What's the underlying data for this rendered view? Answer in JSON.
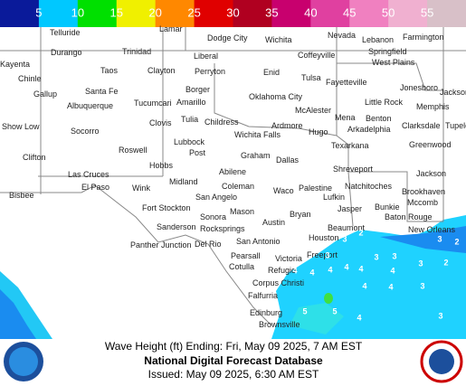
{
  "legend": {
    "labels": [
      5,
      10,
      15,
      20,
      25,
      30,
      35,
      40,
      45,
      50,
      55
    ]
  },
  "cities": [
    "Telluride",
    "Lamar",
    "Dodge City",
    "Wichita",
    "Nevada",
    "Lebanon",
    "Farmington",
    "Trinidad",
    "Durango",
    "Liberal",
    "Coffeyville",
    "Springfield",
    "West Plains",
    "Kayenta",
    "Taos",
    "Clayton",
    "Perryton",
    "Enid",
    "Tulsa",
    "Fayetteville",
    "Jonesboro",
    "Chinle",
    "Gallup",
    "Santa Fe",
    "Borger",
    "Amarillo",
    "Oklahoma City",
    "Little Rock",
    "Jackson",
    "Albuquerque",
    "Tucumcari",
    "McAlester",
    "Memphis",
    "Clovis",
    "Tulia",
    "Childress",
    "Ardmore",
    "Mena",
    "Benton",
    "Show Low",
    "Socorro",
    "Arkadelphia",
    "Clarksdale",
    "Tupelo",
    "Hugo",
    "Wichita Falls",
    "Lubbock",
    "Texarkana",
    "Greenwood",
    "Roswell",
    "Post",
    "Graham",
    "Dallas",
    "Clifton",
    "Hobbs",
    "Abilene",
    "Shreveport",
    "Jackson",
    "Las Cruces",
    "Midland",
    "Coleman",
    "Palestine",
    "Natchitoches",
    "Lufkin",
    "Waco",
    "Bisbee",
    "El Paso",
    "Wink",
    "San Angelo",
    "Brookhaven",
    "Mccomb",
    "Jasper",
    "Bunkie",
    "Fort Stockton",
    "Sonora",
    "Mason",
    "Bryan",
    "Baton Rouge",
    "Austin",
    "Sanderson",
    "Rocksprings",
    "Beaumont",
    "New Orleans",
    "Houston",
    "San Antonio",
    "Panther Junction",
    "Del Rio",
    "Pearsall",
    "Freeport",
    "Victoria",
    "Cotulla",
    "Refugio",
    "Corpus Christi",
    "Falfurria",
    "Edinburg",
    "Brownsville"
  ],
  "wave_labels": [
    2,
    3,
    3,
    4,
    4,
    4,
    4,
    4,
    3,
    3,
    4,
    3,
    2,
    4,
    4,
    3,
    5,
    5,
    4,
    3,
    3,
    2
  ],
  "footer": {
    "caption": "Wave Height (ft) Ending: Fri, May 09 2025, 7 AM EST",
    "title": "National Digital Forecast Database",
    "issued": "Issued: May 09 2025, 6:30 AM EST"
  }
}
